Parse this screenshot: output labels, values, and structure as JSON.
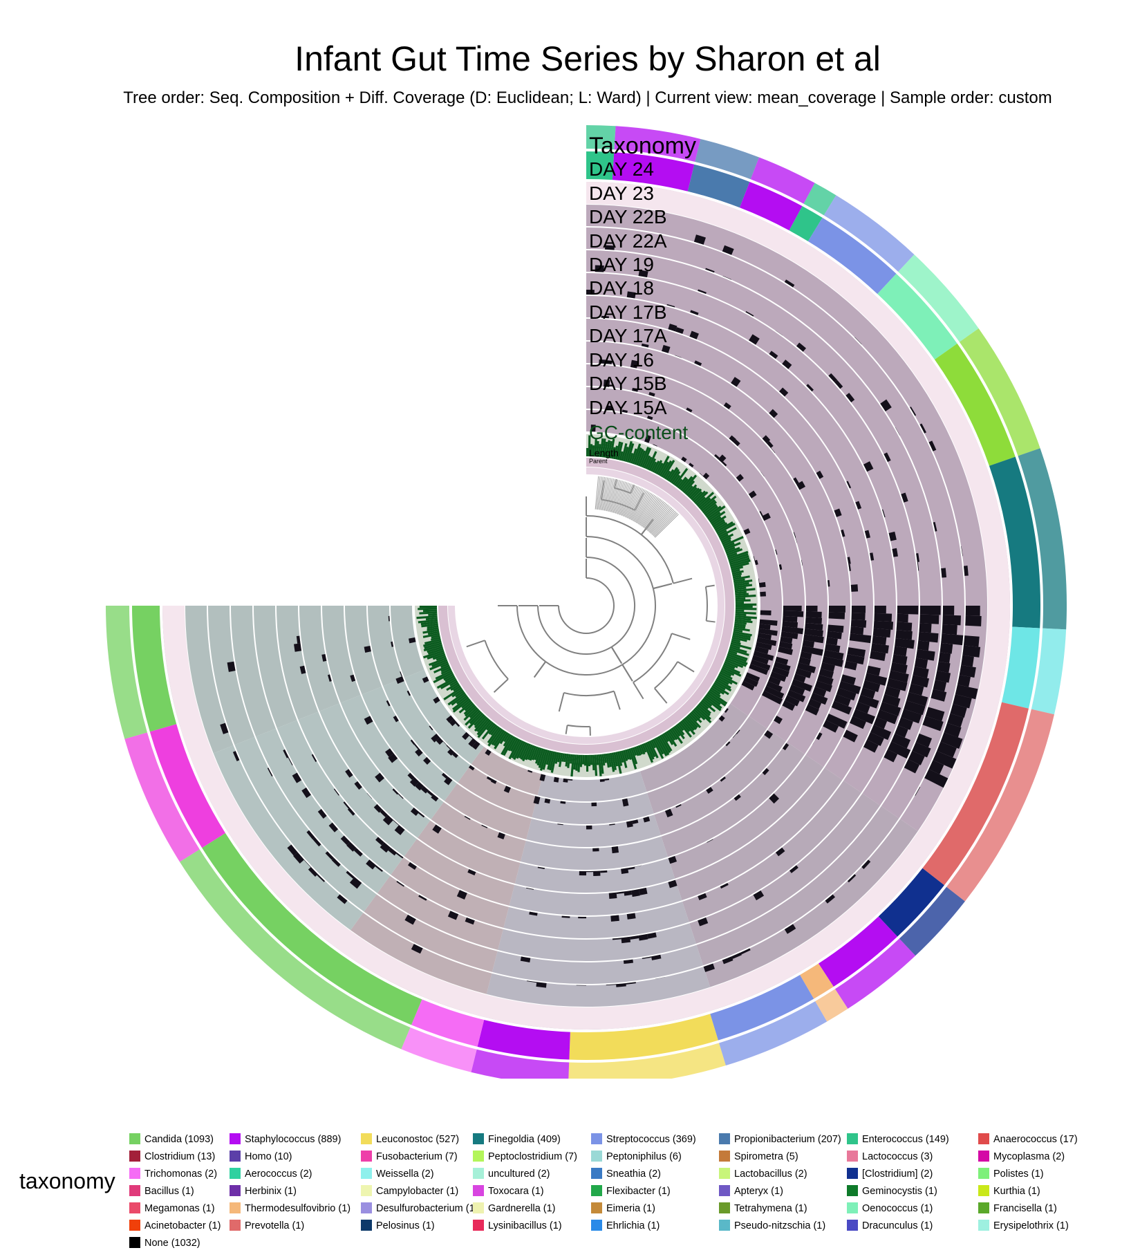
{
  "header": {
    "title": "Infant Gut Time Series by Sharon et al",
    "subtitle": "Tree order: Seq. Composition + Diff. Coverage (D: Euclidean; L: Ward) | Current view: mean_coverage | Sample order: custom"
  },
  "layers": [
    {
      "label": "Taxonomy",
      "size": "large"
    },
    {
      "label": "DAY 24",
      "size": "medium"
    },
    {
      "label": "DAY 23",
      "size": "medium"
    },
    {
      "label": "DAY 22B",
      "size": "medium"
    },
    {
      "label": "DAY 22A",
      "size": "medium"
    },
    {
      "label": "DAY 19",
      "size": "medium"
    },
    {
      "label": "DAY 18",
      "size": "medium"
    },
    {
      "label": "DAY 17B",
      "size": "medium"
    },
    {
      "label": "DAY 17A",
      "size": "medium"
    },
    {
      "label": "DAY 16",
      "size": "medium"
    },
    {
      "label": "DAY 15B",
      "size": "medium"
    },
    {
      "label": "DAY 15A",
      "size": "medium"
    },
    {
      "label": "GC-content",
      "size": "medium",
      "color": "#0a4d1a"
    },
    {
      "label": "Length",
      "size": "small"
    },
    {
      "label": "Parent",
      "size": "tiny"
    }
  ],
  "legend": {
    "title": "taxonomy",
    "items": [
      {
        "label": "Candida (1093)",
        "color": "#76d162"
      },
      {
        "label": "Staphylococcus (889)",
        "color": "#b40df2"
      },
      {
        "label": "Leuconostoc (527)",
        "color": "#f2dc5a"
      },
      {
        "label": "Finegoldia (409)",
        "color": "#167a80"
      },
      {
        "label": "Streptococcus (369)",
        "color": "#7b93e6"
      },
      {
        "label": "Propionibacterium (207)",
        "color": "#4a7aad"
      },
      {
        "label": "Enterococcus (149)",
        "color": "#2fc48a"
      },
      {
        "label": "Anaerococcus (17)",
        "color": "#e04b4b"
      },
      {
        "label": "Clostridium (13)",
        "color": "#a3203a"
      },
      {
        "label": "Homo (10)",
        "color": "#5b3fa8"
      },
      {
        "label": "Fusobacterium (7)",
        "color": "#ee3fa9"
      },
      {
        "label": "Peptoclostridium (7)",
        "color": "#b3f55a"
      },
      {
        "label": "Peptoniphilus (6)",
        "color": "#9ad9d6"
      },
      {
        "label": "Spirometra (5)",
        "color": "#c47a3a"
      },
      {
        "label": "Lactococcus (3)",
        "color": "#e8789a"
      },
      {
        "label": "Mycoplasma (2)",
        "color": "#d40aa6"
      },
      {
        "label": "Trichomonas (2)",
        "color": "#f56cf5"
      },
      {
        "label": "Aerococcus (2)",
        "color": "#2fd1a0"
      },
      {
        "label": "Weissella (2)",
        "color": "#8ef0ec"
      },
      {
        "label": "uncultured (2)",
        "color": "#a6f0d8"
      },
      {
        "label": "Sneathia (2)",
        "color": "#3a7ac4"
      },
      {
        "label": "Lactobacillus (2)",
        "color": "#c8f57a"
      },
      {
        "label": "[Clostridium] (2)",
        "color": "#10308f"
      },
      {
        "label": "Polistes (1)",
        "color": "#7ef07a"
      },
      {
        "label": "Bacillus (1)",
        "color": "#e03a7a"
      },
      {
        "label": "Herbinix (1)",
        "color": "#6e2fa8"
      },
      {
        "label": "Campylobacter (1)",
        "color": "#eef5b0"
      },
      {
        "label": "Toxocara (1)",
        "color": "#d845e0"
      },
      {
        "label": "Flexibacter (1)",
        "color": "#22a84a"
      },
      {
        "label": "Apteryx (1)",
        "color": "#6f58c4"
      },
      {
        "label": "Geminocystis (1)",
        "color": "#0e7a2a"
      },
      {
        "label": "Kurthia (1)",
        "color": "#c9e81a"
      },
      {
        "label": "Megamonas (1)",
        "color": "#ea4a6a"
      },
      {
        "label": "Thermodesulfovibrio (1)",
        "color": "#f5b87a"
      },
      {
        "label": "Desulfurobacterium (1)",
        "color": "#9a8fe0"
      },
      {
        "label": "Gardnerella (1)",
        "color": "#eef2b0"
      },
      {
        "label": "Eimeria (1)",
        "color": "#c48a3a"
      },
      {
        "label": "Tetrahymena (1)",
        "color": "#6a9a2a"
      },
      {
        "label": "Oenococcus (1)",
        "color": "#7ef0b8"
      },
      {
        "label": "Francisella (1)",
        "color": "#5aa82a"
      },
      {
        "label": "Acinetobacter (1)",
        "color": "#f0400a"
      },
      {
        "label": "Prevotella (1)",
        "color": "#e06a6a"
      },
      {
        "label": "Pelosinus (1)",
        "color": "#0e3a6a"
      },
      {
        "label": "Lysinibacillus (1)",
        "color": "#e82a5a"
      },
      {
        "label": "Ehrlichia (1)",
        "color": "#2a8ae8"
      },
      {
        "label": "Pseudo-nitzschia (1)",
        "color": "#5ab8c8"
      },
      {
        "label": "Dracunculus (1)",
        "color": "#4a4ac4"
      },
      {
        "label": "Erysipelothrix (1)",
        "color": "#9ef0e0"
      },
      {
        "label": "None (1032)",
        "color": "#000000"
      }
    ]
  },
  "taxonomy_ring": [
    {
      "taxon": "Enterococcus",
      "color": "#2fc48a",
      "share": 0.012
    },
    {
      "taxon": "Staphylococcus",
      "color": "#b40df2",
      "share": 0.035
    },
    {
      "taxon": "Propionibacterium",
      "color": "#4a7aad",
      "share": 0.025
    },
    {
      "taxon": "Staphylococcus",
      "color": "#b40df2",
      "share": 0.025
    },
    {
      "taxon": "Enterococcus",
      "color": "#2fc48a",
      "share": 0.01
    },
    {
      "taxon": "Streptococcus",
      "color": "#7b93e6",
      "share": 0.04
    },
    {
      "taxon": "Oenococcus",
      "color": "#7ef0b8",
      "share": 0.04
    },
    {
      "taxon": "Candida",
      "color": "#8edc3a",
      "share": 0.055
    },
    {
      "taxon": "Finegoldia",
      "color": "#167a80",
      "share": 0.075
    },
    {
      "taxon": "Weissella",
      "color": "#6ee6e6",
      "share": 0.035
    },
    {
      "taxon": "Prevotella",
      "color": "#e06a6a",
      "share": 0.085
    },
    {
      "taxon": "[Clostridium]",
      "color": "#10308f",
      "share": 0.03
    },
    {
      "taxon": "Staphylococcus",
      "color": "#b40df2",
      "share": 0.035
    },
    {
      "taxon": "Thermodesulfovibrio",
      "color": "#f5b87a",
      "share": 0.01
    },
    {
      "taxon": "Streptococcus",
      "color": "#7b93e6",
      "share": 0.045
    },
    {
      "taxon": "Leuconostoc",
      "color": "#f2dc5a",
      "share": 0.065
    },
    {
      "taxon": "Staphylococcus",
      "color": "#b40df2",
      "share": 0.04
    },
    {
      "taxon": "Trichomonas",
      "color": "#f56cf5",
      "share": 0.03
    },
    {
      "taxon": "Candida",
      "color": "#76d162",
      "share": 0.12
    },
    {
      "taxon": "Toxocara",
      "color": "#ee3fdf",
      "share": 0.055
    },
    {
      "taxon": "Candida",
      "color": "#76d162",
      "share": 0.055
    }
  ]
}
